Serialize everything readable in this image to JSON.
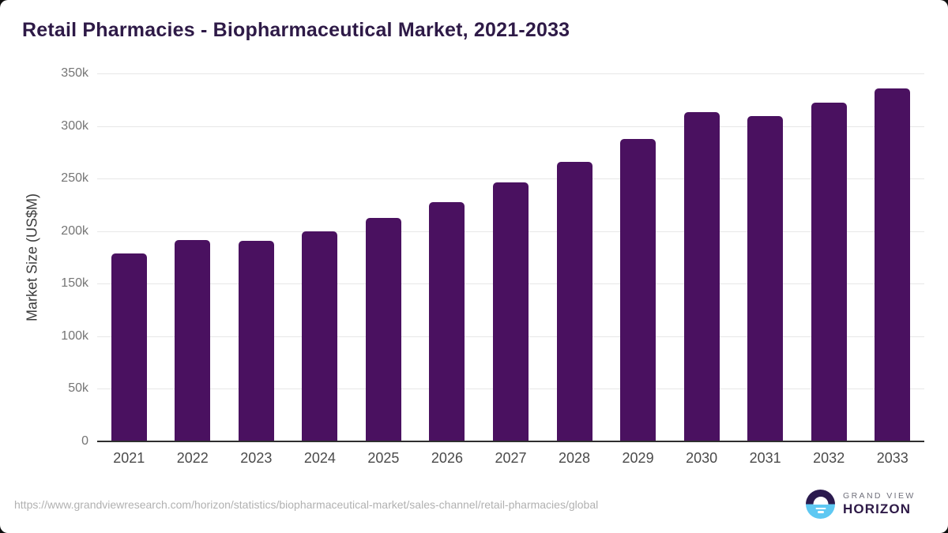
{
  "header": {
    "title": "Retail Pharmacies - Biopharmaceutical Market, 2021-2033"
  },
  "chart_data": {
    "type": "bar",
    "title": "Retail Pharmacies - Biopharmaceutical Market, 2021-2033",
    "categories": [
      "2021",
      "2022",
      "2023",
      "2024",
      "2025",
      "2026",
      "2027",
      "2028",
      "2029",
      "2030",
      "2031",
      "2032",
      "2033"
    ],
    "values": [
      179000,
      191500,
      190500,
      200000,
      212500,
      227500,
      246000,
      266000,
      287500,
      313000,
      309500,
      322500,
      336000
    ],
    "xlabel": "",
    "ylabel": "Market Size (US$M)",
    "unit": "US$M",
    "ylim": [
      0,
      350000
    ],
    "ytick_step": 50000,
    "ytick_labels": [
      "0",
      "50k",
      "100k",
      "150k",
      "200k",
      "250k",
      "300k",
      "350k"
    ],
    "grid": true,
    "legend": false,
    "bar_color": "#4a1160"
  },
  "footer": {
    "source_url": "https://www.grandviewresearch.com/horizon/statistics/biopharmaceutical-market/sales-channel/retail-pharmacies/global",
    "logo": {
      "line1": "GRAND VIEW",
      "line2": "HORIZON"
    }
  },
  "colors": {
    "bar": "#4a1160",
    "title_text": "#2e1a47",
    "gridline": "#e7e7e7",
    "axis_line": "#2f2f2f",
    "logo_purple": "#2b1a4e",
    "logo_blue": "#5ec8f2"
  }
}
